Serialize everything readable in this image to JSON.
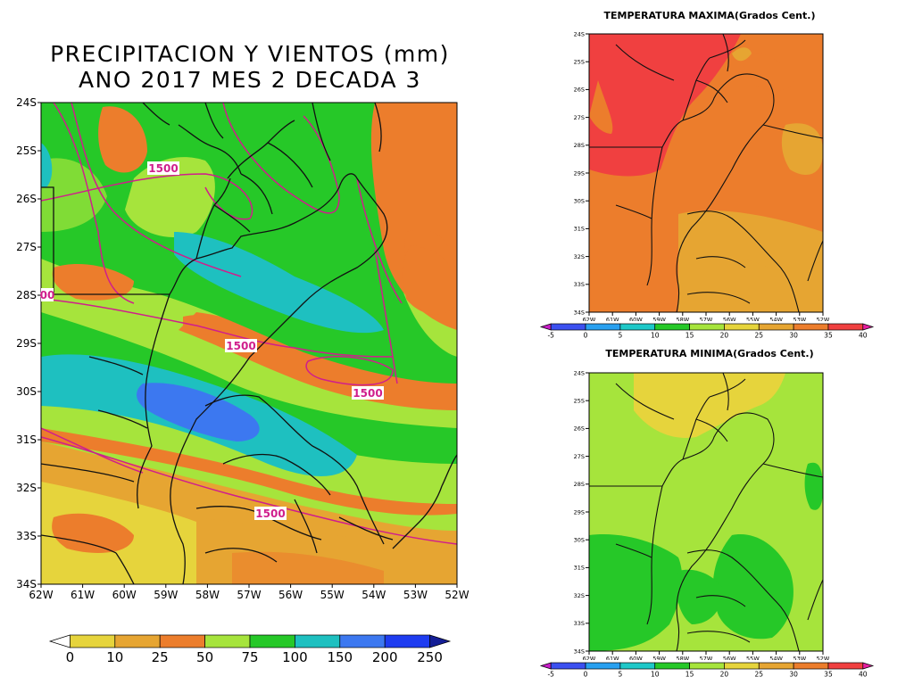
{
  "main_map": {
    "title_line1": "PRECIPITACION Y VIENTOS (mm)",
    "title_line2": "ANO 2017 MES 2 DECADA 3",
    "lat_labels": [
      "24S",
      "25S",
      "26S",
      "27S",
      "28S",
      "29S",
      "30S",
      "31S",
      "32S",
      "33S",
      "34S"
    ],
    "lon_labels": [
      "62W",
      "61W",
      "60W",
      "59W",
      "58W",
      "57W",
      "56W",
      "55W",
      "54W",
      "53W",
      "52W"
    ],
    "contour_labels": [
      "1500",
      "1500",
      "1500",
      "1500",
      "00"
    ],
    "colorbar": {
      "labels": [
        "0",
        "10",
        "25",
        "50",
        "75",
        "100",
        "150",
        "200",
        "250"
      ],
      "colors": [
        "#ffffff",
        "#e6d43c",
        "#e6a532",
        "#ec7d2c",
        "#a6e43c",
        "#26c828",
        "#1ec0c0",
        "#3c78f0",
        "#1e3cf0",
        "#141e96"
      ]
    }
  },
  "tmax_map": {
    "title": "TEMPERATURA MAXIMA(Grados Cent.)",
    "lat_labels": [
      "24S",
      "25S",
      "26S",
      "27S",
      "28S",
      "29S",
      "30S",
      "31S",
      "32S",
      "33S",
      "34S"
    ],
    "lon_labels": [
      "62W",
      "61W",
      "60W",
      "59W",
      "58W",
      "57W",
      "56W",
      "55W",
      "54W",
      "53W",
      "52W"
    ],
    "colorbar": {
      "labels": [
        "-5",
        "0",
        "5",
        "10",
        "15",
        "20",
        "25",
        "30",
        "35",
        "40"
      ],
      "colors": [
        "#c81ec8",
        "#3c50f0",
        "#28a0f0",
        "#1ec8c8",
        "#26c828",
        "#a6e43c",
        "#e6d43c",
        "#e6a532",
        "#ec7d2c",
        "#f04040",
        "#e61ea0"
      ]
    }
  },
  "tmin_map": {
    "title": "TEMPERATURA MINIMA(Grados Cent.)",
    "lat_labels": [
      "24S",
      "25S",
      "26S",
      "27S",
      "28S",
      "29S",
      "30S",
      "31S",
      "32S",
      "33S",
      "34S"
    ],
    "lon_labels": [
      "62W",
      "61W",
      "60W",
      "59W",
      "58W",
      "57W",
      "56W",
      "55W",
      "54W",
      "53W",
      "52W"
    ],
    "colorbar": {
      "labels": [
        "-5",
        "0",
        "5",
        "10",
        "15",
        "20",
        "25",
        "30",
        "35",
        "40"
      ],
      "colors": [
        "#c81ec8",
        "#3c50f0",
        "#28a0f0",
        "#1ec8c8",
        "#26c828",
        "#a6e43c",
        "#e6d43c",
        "#e6a532",
        "#ec7d2c",
        "#f04040",
        "#e61ea0"
      ]
    }
  }
}
